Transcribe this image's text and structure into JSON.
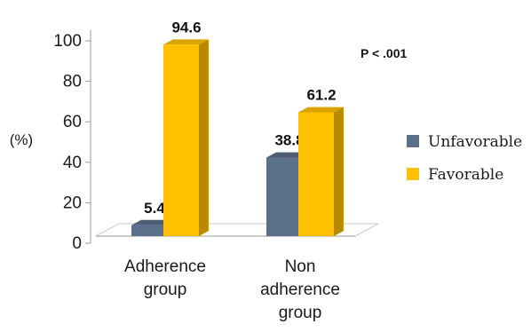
{
  "chart_data": {
    "type": "bar",
    "style": "3d-clustered-column",
    "title": "",
    "ylabel": "(%)",
    "xlabel": "",
    "ylim": [
      0,
      100
    ],
    "yticks": [
      "0",
      "20",
      "40",
      "60",
      "80",
      "100"
    ],
    "categories": [
      [
        "Adherence",
        "group"
      ],
      [
        "Non",
        "adherence",
        "group"
      ]
    ],
    "series": [
      {
        "name": "Unfavorable",
        "values": [
          5.4,
          38.8
        ],
        "labels": [
          "5.4",
          "38.8"
        ],
        "color": "#5a6f8a"
      },
      {
        "name": "Favorable",
        "values": [
          94.6,
          61.2
        ],
        "labels": [
          "94.6",
          "61.2"
        ],
        "color": "#ffc000"
      }
    ],
    "annotation": "P < .001",
    "legend_position": "right",
    "grid": false
  }
}
